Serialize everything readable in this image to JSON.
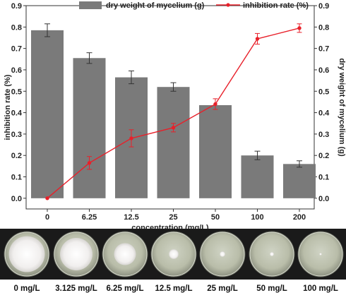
{
  "chart_data": {
    "type": "bar",
    "categories": [
      "0",
      "6.25",
      "12.5",
      "25",
      "50",
      "100",
      "200"
    ],
    "series": [
      {
        "name": "dry weight of mycelium (g)",
        "type": "bar",
        "axis": "right",
        "color": "#7a7a7a",
        "values": [
          0.785,
          0.655,
          0.565,
          0.52,
          0.435,
          0.2,
          0.16
        ],
        "errors": [
          0.03,
          0.025,
          0.03,
          0.02,
          0.0,
          0.02,
          0.015
        ]
      },
      {
        "name": "inhibition rate (%)",
        "type": "line",
        "axis": "left",
        "color": "#e8202a",
        "values": [
          0.0,
          0.165,
          0.28,
          0.33,
          0.44,
          0.745,
          0.795
        ],
        "errors": [
          0.0,
          0.03,
          0.04,
          0.02,
          0.025,
          0.025,
          0.02
        ]
      }
    ],
    "xlabel": "concentration (mg/L)",
    "ylabel_left": "inhibition rate (%)",
    "ylabel_right": "dry weight of mycelium (g)",
    "ylim": [
      -0.05,
      0.9
    ],
    "yticks": [
      "0.0",
      "0.1",
      "0.2",
      "0.3",
      "0.4",
      "0.5",
      "0.6",
      "0.7",
      "0.8",
      "0.9"
    ],
    "legend_position": "top-center",
    "grid": false
  },
  "photo_panel": {
    "dish_labels": [
      "0 mg/L",
      "3.125 mg/L",
      "6.25 mg/L",
      "12.5 mg/L",
      "25 mg/L",
      "50 mg/L",
      "100 mg/L"
    ],
    "colony_size": [
      0.82,
      0.74,
      0.5,
      0.22,
      0.12,
      0.09,
      0.05
    ]
  }
}
